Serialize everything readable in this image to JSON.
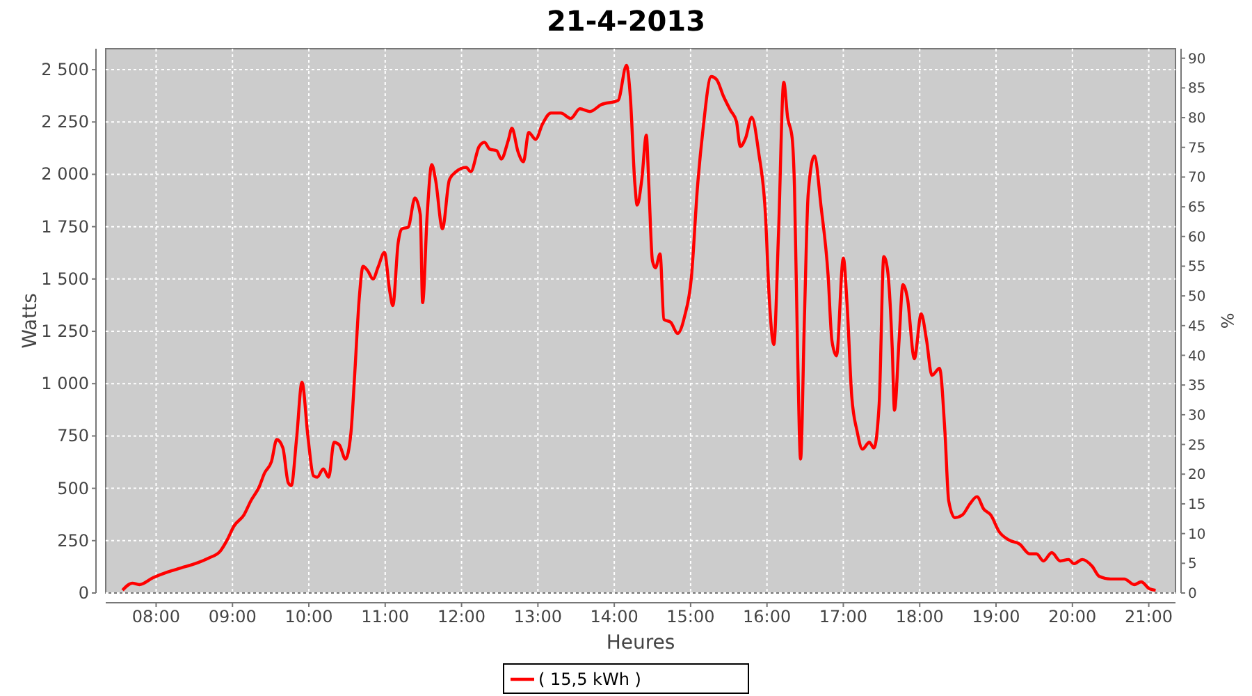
{
  "chart_data": {
    "type": "line",
    "title": "21-4-2013",
    "xlabel": "Heures",
    "ylabel": "Watts",
    "y2label": "%",
    "xlim": [
      7.34,
      21.35
    ],
    "xticks": [
      {
        "value": 8,
        "label": "08:00"
      },
      {
        "value": 9,
        "label": "09:00"
      },
      {
        "value": 10,
        "label": "10:00"
      },
      {
        "value": 11,
        "label": "11:00"
      },
      {
        "value": 12,
        "label": "12:00"
      },
      {
        "value": 13,
        "label": "13:00"
      },
      {
        "value": 14,
        "label": "14:00"
      },
      {
        "value": 15,
        "label": "15:00"
      },
      {
        "value": 16,
        "label": "16:00"
      },
      {
        "value": 17,
        "label": "17:00"
      },
      {
        "value": 18,
        "label": "18:00"
      },
      {
        "value": 19,
        "label": "19:00"
      },
      {
        "value": 20,
        "label": "20:00"
      },
      {
        "value": 21,
        "label": "21:00"
      }
    ],
    "ylim": [
      0,
      2600
    ],
    "yticks": [
      0,
      250,
      500,
      750,
      {
        "value": 1000,
        "label": "1 000"
      },
      {
        "value": 1250,
        "label": "1 250"
      },
      {
        "value": 1500,
        "label": "1 500"
      },
      {
        "value": 1750,
        "label": "1 750"
      },
      {
        "value": 2000,
        "label": "2 000"
      },
      {
        "value": 2250,
        "label": "2 250"
      },
      {
        "value": 2500,
        "label": "2 500"
      }
    ],
    "y2lim": [
      0,
      91.6
    ],
    "y2ticks": [
      0,
      5,
      10,
      15,
      20,
      25,
      30,
      35,
      40,
      45,
      50,
      55,
      60,
      65,
      70,
      75,
      80,
      85,
      90
    ],
    "grid": true,
    "legend": "bottom",
    "marker": "none",
    "line_style": "solid",
    "series": [
      {
        "name": "( 15,5 kWh )",
        "color": "#ff0000",
        "x": [
          7.56,
          7.69,
          7.78,
          7.96,
          8.15,
          8.33,
          8.51,
          8.69,
          8.84,
          8.93,
          9.02,
          9.15,
          9.24,
          9.35,
          9.42,
          9.51,
          9.58,
          9.66,
          9.73,
          9.77,
          9.84,
          9.91,
          9.99,
          10.06,
          10.11,
          10.19,
          10.26,
          10.33,
          10.4,
          10.48,
          10.55,
          10.6,
          10.66,
          10.71,
          10.77,
          10.84,
          10.91,
          10.99,
          11.06,
          11.1,
          11.17,
          11.22,
          11.3,
          11.39,
          11.46,
          11.49,
          11.55,
          11.61,
          11.66,
          11.75,
          11.84,
          11.93,
          12.06,
          12.12,
          12.23,
          12.3,
          12.37,
          12.46,
          12.52,
          12.61,
          12.66,
          12.74,
          12.81,
          12.88,
          12.97,
          13.06,
          13.17,
          13.3,
          13.43,
          13.55,
          13.68,
          13.83,
          14.05,
          14.16,
          14.21,
          14.27,
          14.3,
          14.36,
          14.42,
          14.45,
          14.5,
          14.54,
          14.6,
          14.65,
          14.74,
          14.83,
          14.92,
          15.01,
          15.09,
          15.16,
          15.27,
          15.34,
          15.43,
          15.52,
          15.6,
          15.65,
          15.72,
          15.8,
          15.89,
          15.98,
          16.03,
          16.09,
          16.15,
          16.22,
          16.27,
          16.33,
          16.36,
          16.4,
          16.44,
          16.49,
          16.54,
          16.62,
          16.71,
          16.8,
          16.85,
          16.91,
          17.0,
          17.05,
          17.11,
          17.18,
          17.25,
          17.34,
          17.4,
          17.47,
          17.53,
          17.58,
          17.64,
          17.67,
          17.73,
          17.78,
          17.84,
          17.93,
          18.02,
          18.09,
          18.16,
          18.26,
          18.33,
          18.38,
          18.46,
          18.56,
          18.66,
          18.75,
          18.84,
          18.93,
          19.04,
          19.17,
          19.31,
          19.44,
          19.53,
          19.62,
          19.73,
          19.84,
          19.95,
          20.02,
          20.13,
          20.26,
          20.35,
          20.5,
          20.68,
          20.81,
          20.9,
          21.01,
          21.09
        ],
        "values": [
          13,
          47,
          40,
          73,
          100,
          120,
          140,
          167,
          200,
          253,
          320,
          373,
          440,
          507,
          573,
          627,
          733,
          693,
          527,
          513,
          740,
          1007,
          740,
          560,
          553,
          593,
          553,
          720,
          707,
          640,
          760,
          1040,
          1407,
          1560,
          1540,
          1500,
          1560,
          1627,
          1440,
          1373,
          1673,
          1740,
          1747,
          1887,
          1807,
          1387,
          1807,
          2047,
          1973,
          1740,
          1973,
          2013,
          2033,
          2013,
          2133,
          2153,
          2120,
          2113,
          2073,
          2160,
          2220,
          2107,
          2060,
          2200,
          2167,
          2240,
          2293,
          2293,
          2267,
          2313,
          2300,
          2333,
          2353,
          2520,
          2373,
          1953,
          1853,
          1973,
          2187,
          1973,
          1587,
          1553,
          1620,
          1307,
          1293,
          1240,
          1320,
          1507,
          1940,
          2207,
          2467,
          2453,
          2373,
          2307,
          2253,
          2133,
          2173,
          2273,
          2107,
          1807,
          1407,
          1187,
          1707,
          2440,
          2273,
          2173,
          1940,
          1173,
          640,
          1307,
          1907,
          2087,
          1840,
          1520,
          1207,
          1133,
          1600,
          1373,
          940,
          773,
          687,
          720,
          693,
          907,
          1607,
          1540,
          1173,
          873,
          1207,
          1473,
          1407,
          1120,
          1333,
          1207,
          1040,
          1073,
          773,
          440,
          360,
          373,
          427,
          460,
          400,
          373,
          293,
          253,
          233,
          187,
          187,
          153,
          193,
          153,
          160,
          140,
          160,
          127,
          80,
          67,
          67,
          40,
          53,
          20,
          13
        ]
      }
    ]
  }
}
